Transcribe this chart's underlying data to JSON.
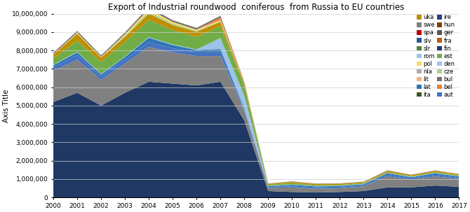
{
  "title": "Export of Industrial roundwood  coniferous  from Russia to EU countries",
  "ylabel": "Axis Title",
  "years": [
    2000,
    2001,
    2002,
    2003,
    2004,
    2005,
    2006,
    2007,
    2008,
    2009,
    2010,
    2011,
    2012,
    2013,
    2014,
    2015,
    2016,
    2017
  ],
  "series": {
    "fin": [
      5200000,
      5700000,
      5000000,
      5700000,
      6300000,
      6200000,
      6100000,
      6300000,
      4200000,
      350000,
      300000,
      270000,
      300000,
      350000,
      550000,
      550000,
      650000,
      580000
    ],
    "swe": [
      1700000,
      1800000,
      1400000,
      1600000,
      1900000,
      1700000,
      1600000,
      1400000,
      500000,
      170000,
      250000,
      200000,
      200000,
      250000,
      600000,
      420000,
      500000,
      420000
    ],
    "aut": [
      200000,
      250000,
      200000,
      200000,
      250000,
      220000,
      200000,
      200000,
      80000,
      50000,
      60000,
      50000,
      50000,
      50000,
      80000,
      60000,
      80000,
      70000
    ],
    "lat": [
      100000,
      150000,
      100000,
      150000,
      250000,
      180000,
      130000,
      180000,
      70000,
      40000,
      80000,
      80000,
      70000,
      70000,
      90000,
      70000,
      90000,
      70000
    ],
    "rom": [
      30000,
      30000,
      30000,
      30000,
      30000,
      30000,
      30000,
      600000,
      700000,
      20000,
      20000,
      20000,
      20000,
      20000,
      20000,
      20000,
      20000,
      20000
    ],
    "est": [
      350000,
      600000,
      650000,
      780000,
      950000,
      780000,
      680000,
      650000,
      550000,
      60000,
      70000,
      60000,
      50000,
      40000,
      40000,
      40000,
      40000,
      40000
    ],
    "uka": [
      200000,
      380000,
      230000,
      280000,
      330000,
      280000,
      280000,
      230000,
      90000,
      45000,
      70000,
      55000,
      55000,
      55000,
      70000,
      55000,
      70000,
      55000
    ],
    "cze": [
      8000,
      15000,
      10000,
      80000,
      120000,
      80000,
      60000,
      40000,
      4000,
      1500,
      1500,
      1500,
      1500,
      1500,
      1500,
      1500,
      1500,
      1500
    ],
    "pol": [
      8000,
      40000,
      25000,
      60000,
      120000,
      80000,
      50000,
      65000,
      8000,
      4000,
      4000,
      4000,
      4000,
      4000,
      4000,
      4000,
      4000,
      4000
    ],
    "bel": [
      3000,
      3000,
      3000,
      3000,
      3000,
      3000,
      3000,
      130000,
      60000,
      1000,
      1000,
      1000,
      1000,
      1000,
      1000,
      1000,
      1000,
      1000
    ],
    "lit": [
      8000,
      12000,
      8000,
      12000,
      15000,
      12000,
      12000,
      12000,
      4000,
      1500,
      1500,
      1500,
      1500,
      1500,
      1500,
      1500,
      1500,
      1500
    ],
    "ger": [
      40000,
      50000,
      40000,
      50000,
      65000,
      50000,
      50000,
      50000,
      15000,
      8000,
      8000,
      8000,
      8000,
      8000,
      12000,
      8000,
      8000,
      8000
    ],
    "ita": [
      15000,
      15000,
      15000,
      15000,
      15000,
      15000,
      15000,
      15000,
      4000,
      1500,
      1500,
      1500,
      1500,
      1500,
      1500,
      1500,
      1500,
      1500
    ],
    "hun": [
      3000,
      3000,
      3000,
      3000,
      3000,
      3000,
      3000,
      3000,
      1500,
      800,
      800,
      800,
      800,
      800,
      800,
      800,
      800,
      800
    ],
    "fra": [
      3000,
      3000,
      3000,
      3000,
      3000,
      3000,
      3000,
      3000,
      1500,
      800,
      800,
      800,
      800,
      800,
      800,
      800,
      800,
      800
    ],
    "ire": [
      3000,
      3000,
      3000,
      3000,
      3000,
      3000,
      3000,
      3000,
      1500,
      800,
      800,
      800,
      800,
      800,
      800,
      800,
      800,
      800
    ],
    "nla": [
      3000,
      3000,
      3000,
      3000,
      3000,
      3000,
      3000,
      3000,
      1500,
      800,
      800,
      800,
      800,
      800,
      800,
      800,
      800,
      800
    ],
    "den": [
      3000,
      3000,
      3000,
      3000,
      3000,
      3000,
      3000,
      3000,
      1500,
      800,
      800,
      800,
      800,
      800,
      800,
      800,
      800,
      800
    ],
    "slv": [
      3000,
      3000,
      3000,
      3000,
      3000,
      3000,
      3000,
      3000,
      1500,
      800,
      800,
      800,
      800,
      800,
      800,
      800,
      800,
      800
    ],
    "slr": [
      3000,
      3000,
      3000,
      3000,
      3000,
      3000,
      3000,
      3000,
      1500,
      800,
      800,
      800,
      800,
      800,
      800,
      800,
      800,
      800
    ],
    "spa": [
      3000,
      3000,
      3000,
      3000,
      3000,
      3000,
      3000,
      3000,
      1500,
      800,
      800,
      800,
      800,
      800,
      800,
      800,
      800,
      800
    ],
    "bul": [
      3000,
      3000,
      3000,
      3000,
      3000,
      3000,
      3000,
      3000,
      1500,
      800,
      800,
      800,
      800,
      800,
      800,
      800,
      800,
      800
    ]
  },
  "colors": {
    "fin": "#1F3864",
    "swe": "#808080",
    "aut": "#4472C4",
    "lat": "#2E75B6",
    "rom": "#9DC3E6",
    "est": "#70AD47",
    "uka": "#BF8F00",
    "cze": "#A9D18E",
    "pol": "#FFD966",
    "bel": "#ED7D31",
    "lit": "#F4B183",
    "ger": "#595959",
    "ita": "#375623",
    "hun": "#833C00",
    "fra": "#C55A11",
    "ire": "#264478",
    "nla": "#AEAAAA",
    "den": "#9DC3E6",
    "slv": "#2F5597",
    "slr": "#548235",
    "spa": "#C00000",
    "bul": "#767171"
  },
  "ylim": [
    0,
    10000000
  ],
  "yticks": [
    0,
    1000000,
    2000000,
    3000000,
    4000000,
    5000000,
    6000000,
    7000000,
    8000000,
    9000000,
    10000000
  ],
  "legend_left": [
    "uka",
    "spa",
    "slr",
    "pol",
    "lit",
    "ita",
    "hun",
    "fra",
    "est",
    "cze",
    "bel"
  ],
  "legend_right": [
    "swe",
    "slv",
    "rom",
    "nla",
    "lat",
    "ire",
    "ger",
    "fin",
    "den",
    "bul",
    "aut"
  ],
  "background_color": "#ffffff"
}
